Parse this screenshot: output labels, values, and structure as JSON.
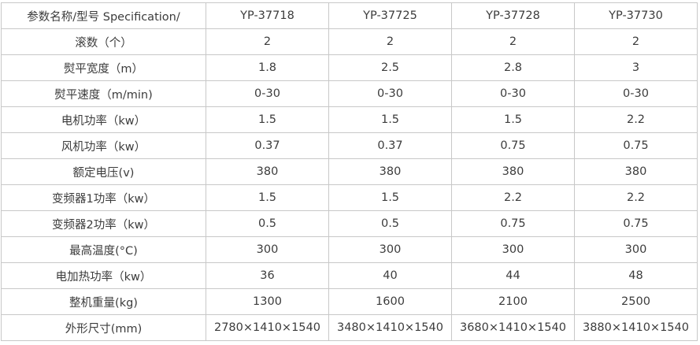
{
  "table": {
    "header": [
      "参数名称/型号 Specification/",
      "YP-37718",
      "YP-37725",
      "YP-37728",
      "YP-37730"
    ],
    "rows": [
      [
        "滚数（个）",
        "2",
        "2",
        "2",
        "2"
      ],
      [
        "熨平宽度（m）",
        "1.8",
        "2.5",
        "2.8",
        "3"
      ],
      [
        "熨平速度（m/min)",
        "0-30",
        "0-30",
        "0-30",
        "0-30"
      ],
      [
        "电机功率（kw）",
        "1.5",
        "1.5",
        "1.5",
        "2.2"
      ],
      [
        "风机功率（kw）",
        "0.37",
        "0.37",
        "0.75",
        "0.75"
      ],
      [
        "额定电压(v)",
        "380",
        "380",
        "380",
        "380"
      ],
      [
        "变频器1功率（kw）",
        "1.5",
        "1.5",
        "2.2",
        "2.2"
      ],
      [
        "变频器2功率（kw）",
        "0.5",
        "0.5",
        "0.75",
        "0.75"
      ],
      [
        "最高温度(°C)",
        "300",
        "300",
        "300",
        "300"
      ],
      [
        "电加热功率（kw）",
        "36",
        "40",
        "44",
        "48"
      ],
      [
        "整机重量(kg)",
        "1300",
        "1600",
        "2100",
        "2500"
      ],
      [
        "外形尺寸(mm)",
        "2780×1410×1540",
        "3480×1410×1540",
        "3680×1410×1540",
        "3880×1410×1540"
      ]
    ]
  }
}
